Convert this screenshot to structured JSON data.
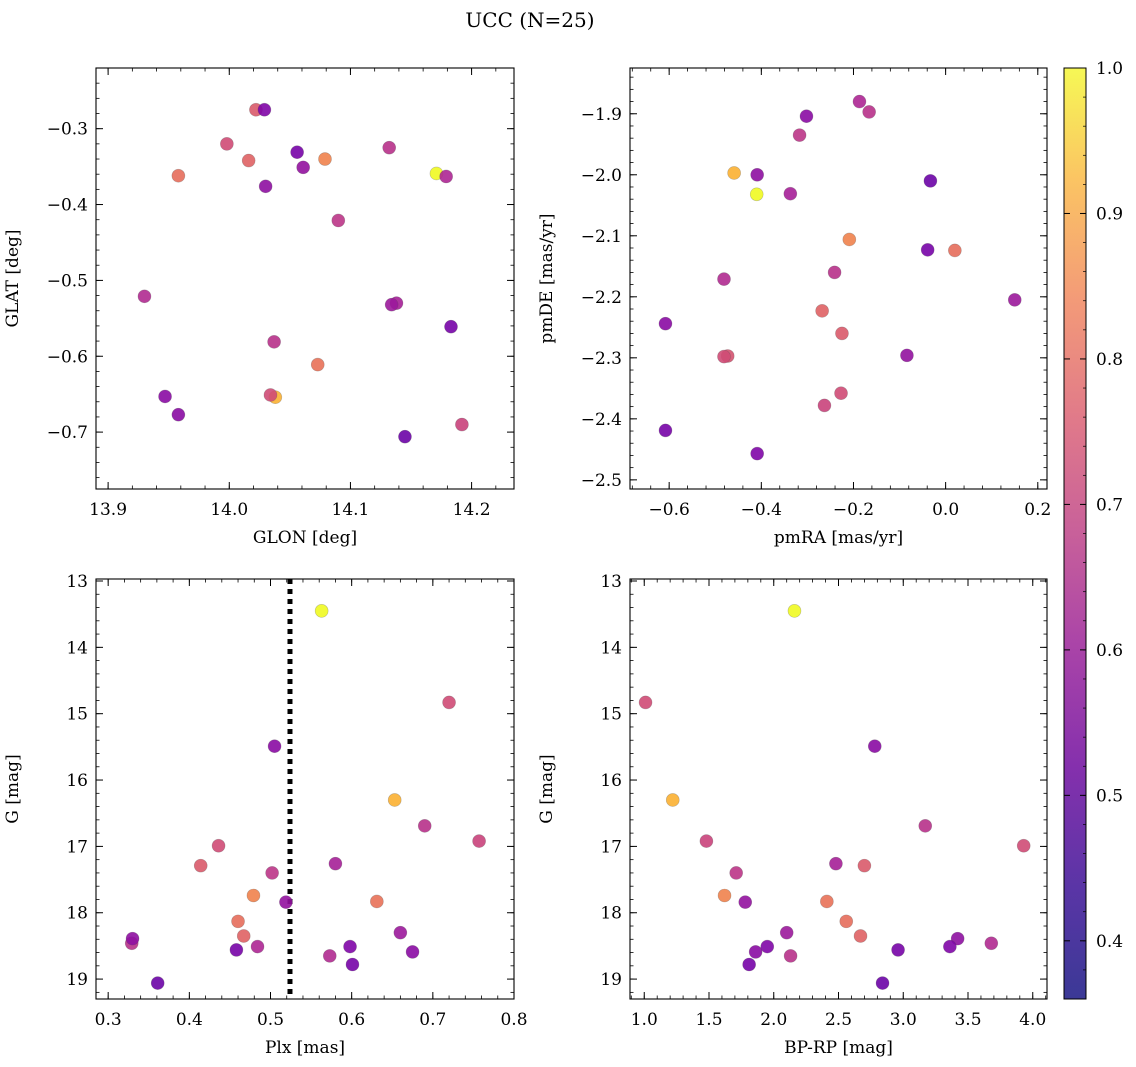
{
  "figure": {
    "title": "UCC (N=25)"
  },
  "colorbar": {
    "min": 0.36,
    "max": 1.0,
    "ticks": [
      0.4,
      0.5,
      0.6,
      0.7,
      0.8,
      0.9,
      1.0
    ],
    "tick_labels": [
      "0.4",
      "0.5",
      "0.6",
      "0.7",
      "0.8",
      "0.9",
      "1.0"
    ],
    "colormap": "plasma"
  },
  "chart_data": [
    {
      "type": "scatter",
      "xlabel": "GLON [deg]",
      "ylabel": "GLAT [deg]",
      "xlim": [
        13.89,
        14.235
      ],
      "ylim": [
        -0.775,
        -0.22
      ],
      "x_ticks": [
        13.9,
        14.0,
        14.1,
        14.2
      ],
      "x_tick_labels": [
        "13.9",
        "14.0",
        "14.1",
        "14.2"
      ],
      "y_ticks": [
        -0.3,
        -0.4,
        -0.5,
        -0.6,
        -0.7
      ],
      "y_tick_labels": [
        "−0.3",
        "−0.4",
        "−0.5",
        "−0.6",
        "−0.7"
      ],
      "points": [
        {
          "x": 14.171,
          "y": -0.359,
          "c": 1.0
        },
        {
          "x": 14.038,
          "y": -0.654,
          "c": 0.86
        },
        {
          "x": 14.079,
          "y": -0.34,
          "c": 0.76
        },
        {
          "x": 13.958,
          "y": -0.362,
          "c": 0.71
        },
        {
          "x": 14.073,
          "y": -0.611,
          "c": 0.72
        },
        {
          "x": 14.016,
          "y": -0.342,
          "c": 0.68
        },
        {
          "x": 14.022,
          "y": -0.275,
          "c": 0.66
        },
        {
          "x": 13.998,
          "y": -0.32,
          "c": 0.62
        },
        {
          "x": 14.034,
          "y": -0.651,
          "c": 0.62
        },
        {
          "x": 14.192,
          "y": -0.69,
          "c": 0.6
        },
        {
          "x": 14.09,
          "y": -0.421,
          "c": 0.56
        },
        {
          "x": 14.037,
          "y": -0.581,
          "c": 0.55
        },
        {
          "x": 14.132,
          "y": -0.325,
          "c": 0.55
        },
        {
          "x": 13.93,
          "y": -0.521,
          "c": 0.53
        },
        {
          "x": 14.179,
          "y": -0.363,
          "c": 0.52
        },
        {
          "x": 14.138,
          "y": -0.53,
          "c": 0.5
        },
        {
          "x": 14.134,
          "y": -0.532,
          "c": 0.48
        },
        {
          "x": 14.061,
          "y": -0.351,
          "c": 0.46
        },
        {
          "x": 14.03,
          "y": -0.376,
          "c": 0.45
        },
        {
          "x": 13.947,
          "y": -0.653,
          "c": 0.44
        },
        {
          "x": 13.958,
          "y": -0.677,
          "c": 0.44
        },
        {
          "x": 14.029,
          "y": -0.275,
          "c": 0.42
        },
        {
          "x": 14.056,
          "y": -0.331,
          "c": 0.4
        },
        {
          "x": 14.183,
          "y": -0.561,
          "c": 0.4
        },
        {
          "x": 14.145,
          "y": -0.706,
          "c": 0.38
        }
      ]
    },
    {
      "type": "scatter",
      "xlabel": "pmRA [mas/yr]",
      "ylabel": "pmDE [mas/yr]",
      "xlim": [
        -0.685,
        0.22
      ],
      "ylim": [
        -2.515,
        -1.825
      ],
      "x_ticks": [
        -0.6,
        -0.4,
        -0.2,
        0.0,
        0.2
      ],
      "x_tick_labels": [
        "−0.6",
        "−0.4",
        "−0.2",
        "0.0",
        "0.2"
      ],
      "y_ticks": [
        -1.9,
        -2.0,
        -2.1,
        -2.2,
        -2.3,
        -2.4,
        -2.5
      ],
      "y_tick_labels": [
        "−1.9",
        "−2.0",
        "−2.1",
        "−2.2",
        "−2.3",
        "−2.4",
        "−2.5"
      ],
      "points": [
        {
          "x": -0.41,
          "y": -2.032,
          "c": 1.0
        },
        {
          "x": -0.459,
          "y": -1.997,
          "c": 0.86
        },
        {
          "x": -0.209,
          "y": -2.106,
          "c": 0.76
        },
        {
          "x": 0.02,
          "y": -2.124,
          "c": 0.71
        },
        {
          "x": -0.268,
          "y": -2.223,
          "c": 0.68
        },
        {
          "x": -0.225,
          "y": -2.26,
          "c": 0.66
        },
        {
          "x": -0.473,
          "y": -2.297,
          "c": 0.64
        },
        {
          "x": -0.481,
          "y": -2.298,
          "c": 0.62
        },
        {
          "x": -0.227,
          "y": -2.358,
          "c": 0.62
        },
        {
          "x": -0.263,
          "y": -2.378,
          "c": 0.6
        },
        {
          "x": -0.317,
          "y": -1.935,
          "c": 0.56
        },
        {
          "x": -0.166,
          "y": -1.897,
          "c": 0.55
        },
        {
          "x": -0.241,
          "y": -2.16,
          "c": 0.55
        },
        {
          "x": -0.481,
          "y": -2.171,
          "c": 0.53
        },
        {
          "x": -0.187,
          "y": -1.88,
          "c": 0.52
        },
        {
          "x": -0.337,
          "y": -2.031,
          "c": 0.5
        },
        {
          "x": 0.15,
          "y": -2.205,
          "c": 0.48
        },
        {
          "x": -0.084,
          "y": -2.296,
          "c": 0.46
        },
        {
          "x": -0.409,
          "y": -2.0,
          "c": 0.45
        },
        {
          "x": -0.302,
          "y": -1.904,
          "c": 0.44
        },
        {
          "x": -0.608,
          "y": -2.244,
          "c": 0.44
        },
        {
          "x": -0.409,
          "y": -2.457,
          "c": 0.42
        },
        {
          "x": -0.039,
          "y": -2.123,
          "c": 0.4
        },
        {
          "x": -0.608,
          "y": -2.419,
          "c": 0.4
        },
        {
          "x": -0.033,
          "y": -2.01,
          "c": 0.38
        }
      ]
    },
    {
      "type": "scatter",
      "xlabel": "Plx [mas]",
      "ylabel": "G [mag]",
      "xlim": [
        0.285,
        0.8
      ],
      "ylim": [
        19.3,
        12.97
      ],
      "y_inverted": true,
      "vline": 0.524,
      "x_ticks": [
        0.3,
        0.4,
        0.5,
        0.6,
        0.7,
        0.8
      ],
      "x_tick_labels": [
        "0.3",
        "0.4",
        "0.5",
        "0.6",
        "0.7",
        "0.8"
      ],
      "y_ticks": [
        13,
        14,
        15,
        16,
        17,
        18,
        19
      ],
      "y_tick_labels": [
        "13",
        "14",
        "15",
        "16",
        "17",
        "18",
        "19"
      ],
      "points": [
        {
          "x": 0.563,
          "y": 13.45,
          "c": 1.0
        },
        {
          "x": 0.653,
          "y": 16.3,
          "c": 0.86
        },
        {
          "x": 0.479,
          "y": 17.74,
          "c": 0.76
        },
        {
          "x": 0.46,
          "y": 18.13,
          "c": 0.71
        },
        {
          "x": 0.631,
          "y": 17.83,
          "c": 0.72
        },
        {
          "x": 0.467,
          "y": 18.35,
          "c": 0.68
        },
        {
          "x": 0.414,
          "y": 17.29,
          "c": 0.66
        },
        {
          "x": 0.72,
          "y": 14.83,
          "c": 0.62
        },
        {
          "x": 0.436,
          "y": 16.99,
          "c": 0.62
        },
        {
          "x": 0.757,
          "y": 16.92,
          "c": 0.6
        },
        {
          "x": 0.502,
          "y": 17.4,
          "c": 0.56
        },
        {
          "x": 0.329,
          "y": 18.46,
          "c": 0.55
        },
        {
          "x": 0.69,
          "y": 16.69,
          "c": 0.55
        },
        {
          "x": 0.573,
          "y": 18.65,
          "c": 0.53
        },
        {
          "x": 0.484,
          "y": 18.51,
          "c": 0.52
        },
        {
          "x": 0.58,
          "y": 17.26,
          "c": 0.5
        },
        {
          "x": 0.66,
          "y": 18.3,
          "c": 0.48
        },
        {
          "x": 0.519,
          "y": 17.84,
          "c": 0.46
        },
        {
          "x": 0.33,
          "y": 18.39,
          "c": 0.45
        },
        {
          "x": 0.675,
          "y": 18.59,
          "c": 0.44
        },
        {
          "x": 0.505,
          "y": 15.49,
          "c": 0.44
        },
        {
          "x": 0.598,
          "y": 18.51,
          "c": 0.42
        },
        {
          "x": 0.458,
          "y": 18.56,
          "c": 0.4
        },
        {
          "x": 0.601,
          "y": 18.78,
          "c": 0.4
        },
        {
          "x": 0.361,
          "y": 19.06,
          "c": 0.38
        }
      ]
    },
    {
      "type": "scatter",
      "xlabel": "BP-RP [mag]",
      "ylabel": "G [mag]",
      "xlim": [
        0.89,
        4.11
      ],
      "ylim": [
        19.3,
        12.97
      ],
      "y_inverted": true,
      "x_ticks": [
        1.0,
        1.5,
        2.0,
        2.5,
        3.0,
        3.5,
        4.0
      ],
      "x_tick_labels": [
        "1.0",
        "1.5",
        "2.0",
        "2.5",
        "3.0",
        "3.5",
        "4.0"
      ],
      "y_ticks": [
        13,
        14,
        15,
        16,
        17,
        18,
        19
      ],
      "y_tick_labels": [
        "13",
        "14",
        "15",
        "16",
        "17",
        "18",
        "19"
      ],
      "points": [
        {
          "x": 2.16,
          "y": 13.45,
          "c": 1.0
        },
        {
          "x": 1.22,
          "y": 16.3,
          "c": 0.86
        },
        {
          "x": 1.62,
          "y": 17.74,
          "c": 0.76
        },
        {
          "x": 2.56,
          "y": 18.13,
          "c": 0.71
        },
        {
          "x": 2.41,
          "y": 17.83,
          "c": 0.72
        },
        {
          "x": 2.67,
          "y": 18.35,
          "c": 0.68
        },
        {
          "x": 2.7,
          "y": 17.29,
          "c": 0.66
        },
        {
          "x": 1.01,
          "y": 14.83,
          "c": 0.62
        },
        {
          "x": 3.93,
          "y": 16.99,
          "c": 0.62
        },
        {
          "x": 1.48,
          "y": 16.92,
          "c": 0.6
        },
        {
          "x": 1.71,
          "y": 17.4,
          "c": 0.56
        },
        {
          "x": 2.13,
          "y": 18.65,
          "c": 0.55
        },
        {
          "x": 3.17,
          "y": 16.69,
          "c": 0.55
        },
        {
          "x": 3.68,
          "y": 18.46,
          "c": 0.53
        },
        {
          "x": 2.48,
          "y": 17.26,
          "c": 0.5
        },
        {
          "x": 2.1,
          "y": 18.3,
          "c": 0.48
        },
        {
          "x": 1.78,
          "y": 17.84,
          "c": 0.46
        },
        {
          "x": 3.42,
          "y": 18.39,
          "c": 0.45
        },
        {
          "x": 1.86,
          "y": 18.59,
          "c": 0.44
        },
        {
          "x": 2.78,
          "y": 15.49,
          "c": 0.44
        },
        {
          "x": 1.95,
          "y": 18.51,
          "c": 0.42
        },
        {
          "x": 3.36,
          "y": 18.51,
          "c": 0.42
        },
        {
          "x": 2.96,
          "y": 18.56,
          "c": 0.4
        },
        {
          "x": 1.81,
          "y": 18.78,
          "c": 0.4
        },
        {
          "x": 2.84,
          "y": 19.06,
          "c": 0.38
        }
      ]
    }
  ]
}
